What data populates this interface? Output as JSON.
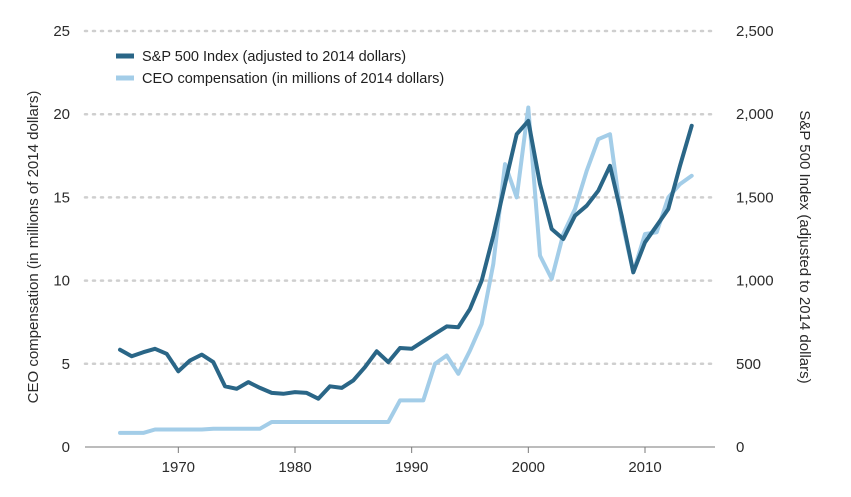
{
  "chart_data": {
    "type": "line",
    "title": "",
    "xlabel": "",
    "ylabel_left": "CEO compensation (in millions of 2014 dollars)",
    "ylabel_right": "S&P 500 Index (adjusted to 2014 dollars)",
    "xlim": [
      1962,
      2016
    ],
    "ylim_left": [
      0,
      25
    ],
    "ylim_right": [
      0,
      2500
    ],
    "x_ticks": [
      1970,
      1980,
      1990,
      2000,
      2010
    ],
    "x_tick_labels": [
      "1970",
      "1980",
      "1990",
      "2000",
      "2010"
    ],
    "y_left_ticks": [
      0,
      5,
      10,
      15,
      20,
      25
    ],
    "y_left_tick_labels": [
      "0",
      "5",
      "10",
      "15",
      "20",
      "25"
    ],
    "y_right_ticks": [
      0,
      500,
      1000,
      1500,
      2000,
      2500
    ],
    "y_right_tick_labels": [
      "0",
      "500",
      "1,000",
      "1,500",
      "2,000",
      "2,500"
    ],
    "grid": "horizontal dotted",
    "legend_position": "top-left",
    "series": [
      {
        "name": "S&P 500 Index (adjusted to 2014 dollars)",
        "axis": "right",
        "color": "#2a6687",
        "x": [
          1965,
          1966,
          1967,
          1968,
          1969,
          1970,
          1971,
          1972,
          1973,
          1974,
          1975,
          1976,
          1977,
          1978,
          1979,
          1980,
          1981,
          1982,
          1983,
          1984,
          1985,
          1986,
          1987,
          1988,
          1989,
          1990,
          1991,
          1992,
          1993,
          1994,
          1995,
          1996,
          1997,
          1998,
          1999,
          2000,
          2001,
          2002,
          2003,
          2004,
          2005,
          2006,
          2007,
          2008,
          2009,
          2010,
          2011,
          2012,
          2013,
          2014
        ],
        "y": [
          585,
          545,
          570,
          590,
          560,
          455,
          520,
          555,
          510,
          365,
          350,
          390,
          355,
          325,
          320,
          330,
          325,
          290,
          365,
          355,
          400,
          480,
          575,
          510,
          595,
          590,
          635,
          680,
          725,
          720,
          830,
          1000,
          1270,
          1580,
          1880,
          1960,
          1580,
          1310,
          1250,
          1390,
          1450,
          1540,
          1690,
          1390,
          1050,
          1230,
          1330,
          1430,
          1690,
          1930
        ]
      },
      {
        "name": "CEO compensation (in millions of 2014 dollars)",
        "axis": "left",
        "color": "#a3cde8",
        "x": [
          1965,
          1966,
          1967,
          1968,
          1969,
          1970,
          1971,
          1972,
          1973,
          1974,
          1975,
          1976,
          1977,
          1978,
          1979,
          1980,
          1981,
          1982,
          1983,
          1984,
          1985,
          1986,
          1987,
          1988,
          1989,
          1990,
          1991,
          1992,
          1993,
          1994,
          1995,
          1996,
          1997,
          1998,
          1999,
          2000,
          2001,
          2002,
          2003,
          2004,
          2005,
          2006,
          2007,
          2008,
          2009,
          2010,
          2011,
          2012,
          2013,
          2014
        ],
        "y": [
          0.85,
          0.85,
          0.85,
          1.05,
          1.05,
          1.05,
          1.05,
          1.05,
          1.1,
          1.1,
          1.1,
          1.1,
          1.1,
          1.5,
          1.5,
          1.5,
          1.5,
          1.5,
          1.5,
          1.5,
          1.5,
          1.5,
          1.5,
          1.5,
          2.8,
          2.8,
          2.8,
          5.0,
          5.5,
          4.4,
          5.8,
          7.4,
          11.0,
          17.0,
          15.0,
          20.4,
          11.5,
          10.1,
          12.8,
          14.3,
          16.6,
          18.5,
          18.8,
          13.6,
          10.5,
          12.8,
          12.9,
          15.0,
          15.8,
          16.3
        ]
      }
    ]
  }
}
